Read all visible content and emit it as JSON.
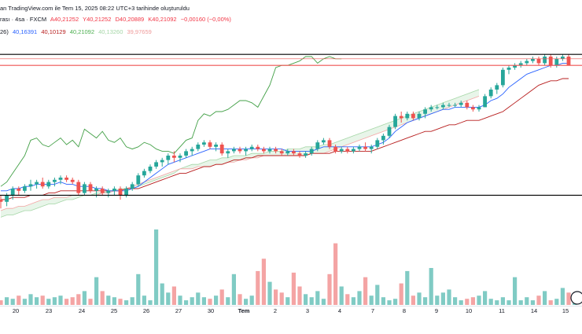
{
  "header": {
    "line1": {
      "source": "an TradingView.com ile Tem 15, 2025 08:22 UTC+3 tarihinde oluşturuldu",
      "symbol": "rası · 4sa · FXCM",
      "open": "A40,21252",
      "high": "Y40,21252",
      "low": "D40,20889",
      "close": "K40,21092",
      "change": "−0,00160 (−0,00%)"
    },
    "line2": {
      "prefix": "26)",
      "v1": "40,16391",
      "v2": "40,10129",
      "v3": "40,21092",
      "v4": "40,13260",
      "v5": "39,97659"
    }
  },
  "colors": {
    "up": "#26a69a",
    "down": "#ef5350",
    "tenkan": "#2962ff",
    "kijun": "#b71c1c",
    "chikou": "#43a047",
    "cloud_fill": "#e8f5e9",
    "cloud_edge": "#a5d6a7",
    "upper_cloud": "#f5a5a5",
    "vol_up": "#80cbc4",
    "vol_down": "#f4a4a4",
    "hline": "#000000",
    "resistance": "#ef5350"
  },
  "chart_data": {
    "type": "candlestick",
    "title": "4sa · FXCM",
    "x_tick_labels": [
      "20",
      "23",
      "24",
      "25",
      "26",
      "27",
      "30",
      "Tem",
      "2",
      "3",
      "4",
      "7",
      "8",
      "9",
      "10",
      "11",
      "14",
      "15"
    ],
    "y_range": [
      39.5,
      40.3
    ],
    "horizontal_lines": [
      40.26,
      39.62
    ],
    "resistance_band": [
      40.21,
      40.24
    ],
    "candles": [
      [
        39.6,
        39.62,
        39.56,
        39.59
      ],
      [
        39.59,
        39.63,
        39.57,
        39.62
      ],
      [
        39.62,
        39.66,
        39.6,
        39.65
      ],
      [
        39.65,
        39.66,
        39.62,
        39.64
      ],
      [
        39.64,
        39.67,
        39.63,
        39.66
      ],
      [
        39.66,
        39.69,
        39.64,
        39.67
      ],
      [
        39.67,
        39.69,
        39.65,
        39.68
      ],
      [
        39.68,
        39.7,
        39.65,
        39.66
      ],
      [
        39.66,
        39.69,
        39.65,
        39.68
      ],
      [
        39.68,
        39.7,
        39.66,
        39.69
      ],
      [
        39.69,
        39.71,
        39.67,
        39.7
      ],
      [
        39.7,
        39.71,
        39.68,
        39.69
      ],
      [
        39.69,
        39.7,
        39.67,
        39.68
      ],
      [
        39.68,
        39.69,
        39.62,
        39.63
      ],
      [
        39.63,
        39.68,
        39.62,
        39.67
      ],
      [
        39.67,
        39.68,
        39.63,
        39.64
      ],
      [
        39.64,
        39.66,
        39.61,
        39.65
      ],
      [
        39.65,
        39.66,
        39.62,
        39.63
      ],
      [
        39.63,
        39.65,
        39.61,
        39.64
      ],
      [
        39.64,
        39.66,
        39.62,
        39.65
      ],
      [
        39.65,
        39.66,
        39.6,
        39.62
      ],
      [
        39.62,
        39.66,
        39.61,
        39.65
      ],
      [
        39.65,
        39.68,
        39.64,
        39.67
      ],
      [
        39.67,
        39.72,
        39.66,
        39.71
      ],
      [
        39.71,
        39.74,
        39.7,
        39.73
      ],
      [
        39.73,
        39.76,
        39.72,
        39.75
      ],
      [
        39.75,
        39.78,
        39.74,
        39.77
      ],
      [
        39.77,
        39.79,
        39.75,
        39.78
      ],
      [
        39.78,
        39.81,
        39.76,
        39.8
      ],
      [
        39.8,
        39.82,
        39.77,
        39.79
      ],
      [
        39.79,
        39.81,
        39.77,
        39.8
      ],
      [
        39.8,
        39.83,
        39.79,
        39.82
      ],
      [
        39.82,
        39.84,
        39.8,
        39.83
      ],
      [
        39.83,
        39.86,
        39.82,
        39.85
      ],
      [
        39.85,
        39.87,
        39.84,
        39.86
      ],
      [
        39.86,
        39.87,
        39.83,
        39.84
      ],
      [
        39.84,
        39.86,
        39.82,
        39.85
      ],
      [
        39.85,
        39.86,
        39.8,
        39.81
      ],
      [
        39.81,
        39.83,
        39.79,
        39.82
      ],
      [
        39.82,
        39.84,
        39.81,
        39.83
      ],
      [
        39.83,
        39.84,
        39.81,
        39.82
      ],
      [
        39.82,
        39.84,
        39.8,
        39.83
      ],
      [
        39.83,
        39.85,
        39.82,
        39.84
      ],
      [
        39.84,
        39.85,
        39.82,
        39.83
      ],
      [
        39.83,
        39.84,
        39.81,
        39.82
      ],
      [
        39.82,
        39.84,
        39.81,
        39.83
      ],
      [
        39.83,
        39.84,
        39.81,
        39.82
      ],
      [
        39.82,
        39.83,
        39.8,
        39.81
      ],
      [
        39.81,
        39.83,
        39.8,
        39.82
      ],
      [
        39.82,
        39.83,
        39.8,
        39.81
      ],
      [
        39.81,
        39.82,
        39.79,
        39.8
      ],
      [
        39.8,
        39.82,
        39.79,
        39.81
      ],
      [
        39.81,
        39.84,
        39.8,
        39.83
      ],
      [
        39.83,
        39.87,
        39.82,
        39.86
      ],
      [
        39.86,
        39.88,
        39.85,
        39.87
      ],
      [
        39.87,
        39.88,
        39.83,
        39.84
      ],
      [
        39.84,
        39.85,
        39.81,
        39.82
      ],
      [
        39.82,
        39.84,
        39.81,
        39.83
      ],
      [
        39.83,
        39.84,
        39.81,
        39.82
      ],
      [
        39.82,
        39.84,
        39.81,
        39.83
      ],
      [
        39.83,
        39.85,
        39.82,
        39.84
      ],
      [
        39.84,
        39.86,
        39.82,
        39.83
      ],
      [
        39.83,
        39.85,
        39.81,
        39.84
      ],
      [
        39.84,
        39.88,
        39.83,
        39.87
      ],
      [
        39.87,
        39.9,
        39.85,
        39.89
      ],
      [
        39.89,
        39.94,
        39.88,
        39.93
      ],
      [
        39.93,
        39.99,
        39.92,
        39.98
      ],
      [
        39.98,
        40.0,
        39.95,
        39.97
      ],
      [
        39.97,
        40.0,
        39.96,
        39.99
      ],
      [
        39.99,
        40.0,
        39.96,
        39.97
      ],
      [
        39.97,
        40.0,
        39.96,
        39.99
      ],
      [
        39.99,
        40.02,
        39.97,
        40.01
      ],
      [
        40.01,
        40.03,
        40.0,
        40.02
      ],
      [
        40.02,
        40.03,
        40.01,
        40.02
      ],
      [
        40.02,
        40.04,
        40.01,
        40.03
      ],
      [
        40.03,
        40.04,
        40.02,
        40.03
      ],
      [
        40.03,
        40.04,
        40.02,
        40.03
      ],
      [
        40.03,
        40.05,
        40.02,
        40.04
      ],
      [
        40.04,
        40.05,
        40.01,
        40.02
      ],
      [
        40.02,
        40.03,
        40.0,
        40.01
      ],
      [
        40.01,
        40.03,
        40.0,
        40.02
      ],
      [
        40.02,
        40.08,
        40.02,
        40.07
      ],
      [
        40.07,
        40.11,
        40.06,
        40.1
      ],
      [
        40.1,
        40.13,
        40.08,
        40.12
      ],
      [
        40.12,
        40.2,
        40.11,
        40.19
      ],
      [
        40.19,
        40.21,
        40.17,
        40.2
      ],
      [
        40.2,
        40.22,
        40.19,
        40.21
      ],
      [
        40.21,
        40.23,
        40.2,
        40.22
      ],
      [
        40.22,
        40.24,
        40.21,
        40.23
      ],
      [
        40.23,
        40.25,
        40.22,
        40.24
      ],
      [
        40.24,
        40.25,
        40.21,
        40.22
      ],
      [
        40.22,
        40.26,
        40.21,
        40.25
      ],
      [
        40.25,
        40.26,
        40.2,
        40.21
      ],
      [
        40.21,
        40.25,
        40.2,
        40.24
      ],
      [
        40.24,
        40.26,
        40.23,
        40.25
      ],
      [
        40.25,
        40.26,
        40.21,
        40.21
      ]
    ],
    "tenkan": [
      39.64,
      39.64,
      39.65,
      39.65,
      39.66,
      39.66,
      39.67,
      39.67,
      39.67,
      39.67,
      39.68,
      39.67,
      39.67,
      39.66,
      39.66,
      39.66,
      39.65,
      39.65,
      39.64,
      39.64,
      39.64,
      39.64,
      39.65,
      39.66,
      39.68,
      39.7,
      39.72,
      39.74,
      39.76,
      39.77,
      39.78,
      39.79,
      39.8,
      39.81,
      39.82,
      39.83,
      39.83,
      39.83,
      39.83,
      39.83,
      39.83,
      39.83,
      39.83,
      39.83,
      39.83,
      39.83,
      39.83,
      39.83,
      39.82,
      39.82,
      39.82,
      39.82,
      39.82,
      39.83,
      39.84,
      39.84,
      39.84,
      39.84,
      39.84,
      39.84,
      39.84,
      39.84,
      39.84,
      39.85,
      39.86,
      39.88,
      39.91,
      39.93,
      39.95,
      39.96,
      39.97,
      39.98,
      39.99,
      40.0,
      40.01,
      40.01,
      40.02,
      40.02,
      40.02,
      40.02,
      40.02,
      40.03,
      40.05,
      40.06,
      40.08,
      40.11,
      40.13,
      40.15,
      40.17,
      40.18,
      40.19,
      40.2,
      40.21,
      40.21,
      40.22,
      40.22
    ],
    "kijun": [
      39.6,
      39.6,
      39.61,
      39.61,
      39.61,
      39.62,
      39.62,
      39.62,
      39.63,
      39.63,
      39.64,
      39.64,
      39.64,
      39.64,
      39.64,
      39.64,
      39.64,
      39.64,
      39.64,
      39.64,
      39.64,
      39.65,
      39.65,
      39.65,
      39.66,
      39.67,
      39.68,
      39.69,
      39.7,
      39.71,
      39.72,
      39.72,
      39.73,
      39.74,
      39.75,
      39.75,
      39.76,
      39.76,
      39.77,
      39.78,
      39.78,
      39.79,
      39.79,
      39.8,
      39.8,
      39.8,
      39.8,
      39.8,
      39.8,
      39.8,
      39.8,
      39.8,
      39.81,
      39.81,
      39.81,
      39.81,
      39.82,
      39.82,
      39.82,
      39.82,
      39.82,
      39.82,
      39.82,
      39.83,
      39.84,
      39.85,
      39.86,
      39.87,
      39.88,
      39.89,
      39.9,
      39.91,
      39.91,
      39.92,
      39.93,
      39.94,
      39.94,
      39.95,
      39.96,
      39.96,
      39.96,
      39.97,
      39.98,
      39.99,
      40.0,
      40.02,
      40.04,
      40.06,
      40.08,
      40.1,
      40.12,
      40.13,
      40.14,
      40.14,
      40.15,
      40.15
    ],
    "chikou": [
      39.66,
      39.68,
      39.72,
      39.76,
      39.8,
      39.87,
      39.88,
      39.85,
      39.84,
      39.86,
      39.88,
      39.85,
      39.87,
      39.84,
      39.92,
      39.9,
      39.88,
      39.91,
      39.87,
      39.86,
      39.88,
      39.84,
      39.83,
      39.84,
      39.86,
      39.85,
      39.83,
      39.82,
      39.82,
      39.81,
      39.84,
      39.87,
      39.88,
      39.96,
      39.99,
      39.98,
      40.0,
      40.0,
      40.01,
      40.03,
      40.05,
      40.05,
      40.04,
      40.02,
      40.07,
      40.12,
      40.2,
      40.21,
      40.21,
      40.22,
      40.23,
      40.25,
      40.25,
      40.22,
      40.24,
      40.25,
      40.24,
      40.24
    ],
    "span_a": [
      39.52,
      39.53,
      39.53,
      39.54,
      39.55,
      39.55,
      39.56,
      39.57,
      39.58,
      39.58,
      39.59,
      39.6,
      39.6,
      39.61,
      39.62,
      39.62,
      39.63,
      39.63,
      39.64,
      39.64,
      39.65,
      39.65,
      39.65,
      39.66,
      39.67,
      39.68,
      39.69,
      39.7,
      39.71,
      39.72,
      39.74,
      39.75,
      39.76,
      39.76,
      39.77,
      39.78,
      39.78,
      39.79,
      39.79,
      39.8,
      39.8,
      39.8,
      39.81,
      39.81,
      39.81,
      39.82,
      39.82,
      39.82,
      39.83,
      39.83,
      39.83,
      39.84,
      39.84,
      39.84,
      39.85,
      39.85,
      39.86,
      39.87,
      39.88,
      39.89,
      39.9,
      39.91,
      39.92,
      39.93,
      39.94,
      39.95,
      39.96,
      39.97,
      39.98,
      39.99,
      40.0,
      40.01,
      40.02,
      40.03,
      40.04,
      40.05,
      40.06,
      40.07,
      40.08,
      40.09,
      40.1
    ],
    "span_b": [
      39.55,
      39.56,
      39.56,
      39.57,
      39.57,
      39.58,
      39.59,
      39.6,
      39.6,
      39.61,
      39.61,
      39.61,
      39.62,
      39.62,
      39.62,
      39.62,
      39.62,
      39.63,
      39.63,
      39.64,
      39.64,
      39.65,
      39.66,
      39.67,
      39.68,
      39.69,
      39.7,
      39.71,
      39.72,
      39.73,
      39.74,
      39.74,
      39.74,
      39.75,
      39.75,
      39.75,
      39.76,
      39.76,
      39.77,
      39.77,
      39.78,
      39.78,
      39.79,
      39.79,
      39.8,
      39.8,
      39.8,
      39.8,
      39.8,
      39.8,
      39.8,
      39.8,
      39.81,
      39.81,
      39.81,
      39.82,
      39.83,
      39.84,
      39.85,
      39.86,
      39.87,
      39.88,
      39.89,
      39.9,
      39.91,
      39.92,
      39.93,
      39.94,
      39.95,
      39.96,
      39.97,
      39.98,
      39.99,
      40.0,
      40.01,
      40.02,
      40.03,
      40.04,
      40.05,
      40.06,
      40.07
    ],
    "volume": [
      3,
      5,
      4,
      6,
      4,
      7,
      5,
      6,
      4,
      5,
      6,
      4,
      5,
      7,
      9,
      4,
      18,
      9,
      6,
      5,
      4,
      3,
      5,
      20,
      6,
      3,
      49,
      14,
      8,
      12,
      6,
      3,
      5,
      8,
      5,
      4,
      6,
      10,
      5,
      20,
      7,
      4,
      6,
      22,
      30,
      15,
      10,
      8,
      5,
      21,
      12,
      7,
      5,
      9,
      4,
      20,
      40,
      12,
      7,
      5,
      9,
      18,
      6,
      13,
      5,
      3,
      4,
      14,
      22,
      6,
      8,
      5,
      24,
      6,
      8,
      10,
      5,
      3,
      4,
      5,
      6,
      9,
      4,
      3,
      5,
      3,
      18,
      3,
      5,
      3,
      6,
      9,
      3,
      4,
      11,
      8,
      5
    ]
  }
}
